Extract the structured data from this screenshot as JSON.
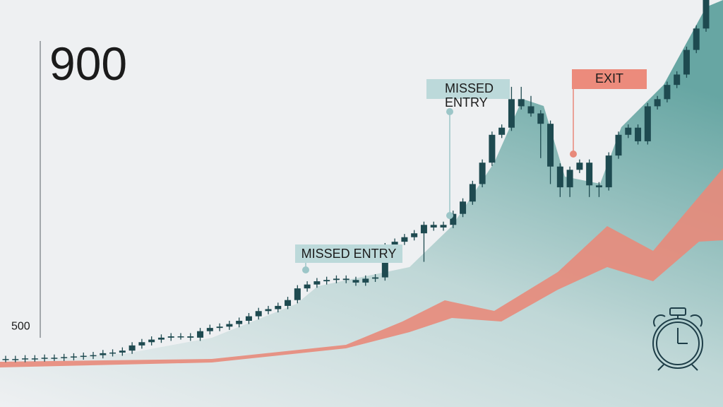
{
  "chart_data": {
    "type": "candlestick",
    "ylim": [
      376,
      1004
    ],
    "yticks": [
      500,
      900
    ],
    "grid": false,
    "color": "#1e4a50",
    "open": [
      450,
      450,
      450,
      451,
      451,
      452,
      452,
      453,
      454,
      455,
      456,
      459,
      460,
      463,
      471,
      476,
      480,
      483,
      485,
      485,
      483,
      493,
      498,
      500,
      504,
      509,
      516,
      524,
      527,
      532,
      541,
      559,
      565,
      570,
      572,
      574,
      572,
      568,
      574,
      576,
      624,
      631,
      638,
      644,
      657,
      653,
      657,
      674,
      693,
      720,
      753,
      796,
      807,
      851,
      840,
      829,
      813,
      747,
      715,
      742,
      753,
      718,
      715,
      764,
      796,
      807,
      786,
      840,
      851,
      873,
      889,
      927,
      960
    ],
    "high": [
      455,
      455,
      456,
      456,
      457,
      457,
      458,
      459,
      460,
      461,
      464,
      465,
      468,
      476,
      481,
      485,
      488,
      490,
      490,
      490,
      498,
      503,
      505,
      509,
      514,
      521,
      529,
      532,
      537,
      546,
      564,
      570,
      575,
      577,
      579,
      579,
      577,
      579,
      581,
      629,
      636,
      643,
      649,
      662,
      662,
      662,
      679,
      698,
      725,
      758,
      801,
      812,
      870,
      870,
      856,
      834,
      818,
      752,
      747,
      758,
      758,
      723,
      769,
      801,
      812,
      812,
      845,
      856,
      878,
      894,
      932,
      965,
      1009
    ],
    "low": [
      445,
      445,
      445,
      446,
      446,
      447,
      447,
      448,
      449,
      450,
      451,
      454,
      455,
      458,
      466,
      471,
      475,
      478,
      480,
      478,
      478,
      488,
      493,
      495,
      499,
      504,
      511,
      519,
      522,
      527,
      536,
      554,
      560,
      565,
      567,
      567,
      563,
      563,
      569,
      571,
      619,
      626,
      633,
      600,
      648,
      648,
      652,
      669,
      688,
      715,
      748,
      791,
      802,
      835,
      824,
      760,
      720,
      700,
      700,
      737,
      700,
      700,
      710,
      759,
      791,
      781,
      781,
      835,
      846,
      868,
      884,
      922,
      955
    ],
    "close": [
      450,
      450,
      451,
      451,
      452,
      452,
      453,
      454,
      455,
      456,
      459,
      460,
      463,
      471,
      476,
      480,
      483,
      485,
      485,
      483,
      493,
      498,
      500,
      504,
      509,
      516,
      524,
      527,
      532,
      541,
      559,
      565,
      570,
      572,
      574,
      572,
      568,
      574,
      576,
      624,
      631,
      638,
      644,
      657,
      653,
      657,
      674,
      693,
      720,
      753,
      796,
      807,
      851,
      840,
      829,
      813,
      747,
      715,
      742,
      753,
      718,
      715,
      764,
      796,
      807,
      786,
      840,
      851,
      873,
      889,
      927,
      960,
      1004
    ],
    "annotations": [
      {
        "text": "MISSED ENTRY"
      },
      {
        "lines": [
          "MISSED",
          "ENTRY"
        ]
      },
      {
        "text": "EXIT"
      }
    ]
  }
}
